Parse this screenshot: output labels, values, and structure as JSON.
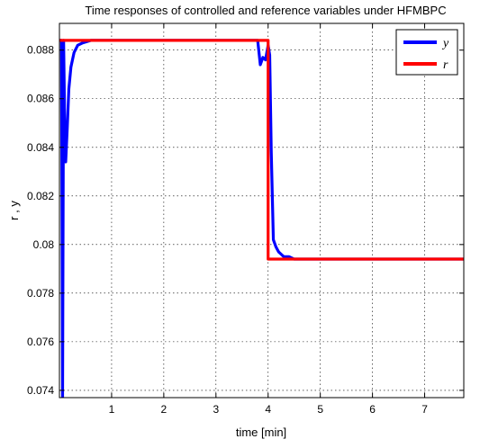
{
  "chart_data": {
    "type": "line",
    "title": "Time responses of controlled and reference variables under HFMBPC",
    "xlabel": "time [min]",
    "ylabel": "r , y",
    "xlim": [
      0,
      7.75
    ],
    "ylim": [
      0.0737,
      0.0891
    ],
    "xticks": [
      1,
      2,
      3,
      4,
      5,
      6,
      7
    ],
    "xtick_labels": [
      "1",
      "2",
      "3",
      "4",
      "5",
      "6",
      "7"
    ],
    "yticks": [
      0.074,
      0.076,
      0.078,
      0.08,
      0.082,
      0.084,
      0.086,
      0.088
    ],
    "ytick_labels": [
      "0.074",
      "0.076",
      "0.078",
      "0.08",
      "0.082",
      "0.084",
      "0.086",
      "0.088"
    ],
    "grid": true,
    "legend": "top-right",
    "series": [
      {
        "name": "y",
        "color": "#0000ff",
        "x": [
          0,
          0.02,
          0.04,
          0.06,
          0.08,
          0.1,
          0.12,
          0.15,
          0.18,
          0.22,
          0.28,
          0.35,
          0.45,
          0.6,
          0.8,
          1.0,
          2.0,
          3.0,
          3.8,
          3.85,
          3.9,
          3.95,
          4.0,
          4.03,
          4.06,
          4.1,
          4.15,
          4.2,
          4.25,
          4.3,
          4.4,
          4.5,
          4.6,
          5.0,
          6.0,
          7.0,
          7.75
        ],
        "y": [
          0.0884,
          0.0884,
          0.0884,
          0.0737,
          0.0884,
          0.0851,
          0.0834,
          0.0848,
          0.0864,
          0.0873,
          0.0879,
          0.0882,
          0.0883,
          0.0884,
          0.0884,
          0.0884,
          0.0884,
          0.0884,
          0.0884,
          0.0874,
          0.0877,
          0.0876,
          0.0882,
          0.0878,
          0.0838,
          0.0802,
          0.0799,
          0.0797,
          0.0796,
          0.0795,
          0.0795,
          0.0794,
          0.0794,
          0.0794,
          0.0794,
          0.0794,
          0.0794
        ]
      },
      {
        "name": "r",
        "color": "#ff0000",
        "x": [
          0,
          4.0,
          4.0,
          7.75
        ],
        "y": [
          0.0884,
          0.0884,
          0.0794,
          0.0794
        ]
      }
    ]
  }
}
